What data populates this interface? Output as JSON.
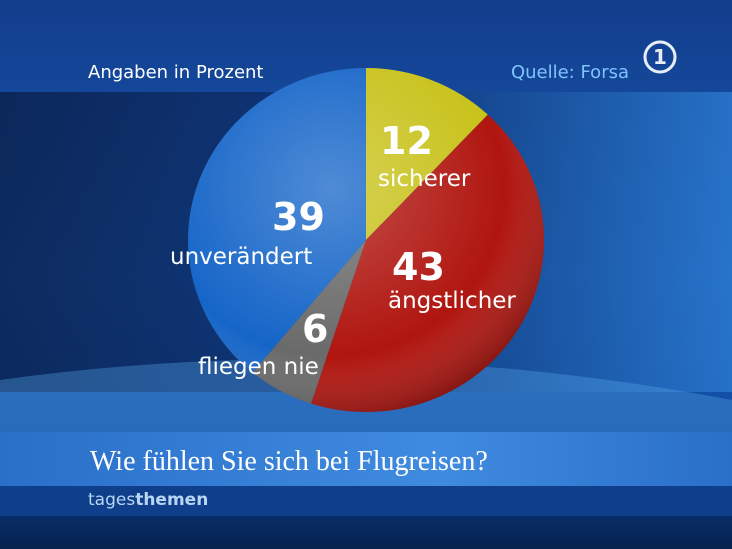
{
  "chart_data": {
    "type": "pie",
    "title": "Wie fühlen Sie sich bei Flugreisen?",
    "note": "Angaben in Prozent",
    "source": "Quelle: Forsa",
    "categories": [
      "sicherer",
      "ängstlicher",
      "fliegen nie",
      "unverändert"
    ],
    "values": [
      12,
      43,
      6,
      39
    ],
    "colors": [
      "#c8c21a",
      "#b0150f",
      "#6a6a6a",
      "#1565c8"
    ]
  },
  "brand": {
    "part1": "tages",
    "part2": "themen"
  }
}
